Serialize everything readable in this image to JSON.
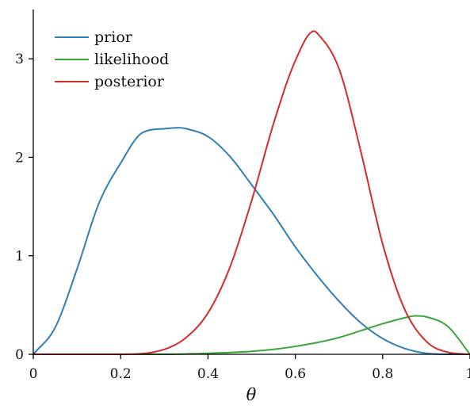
{
  "chart_data": {
    "type": "line",
    "title": "",
    "xlabel": "θ",
    "ylabel": "",
    "xlim": [
      0,
      1
    ],
    "ylim": [
      0,
      3.5
    ],
    "x_ticks": [
      0,
      0.2,
      0.4,
      0.6,
      0.8,
      1
    ],
    "x_tick_labels": [
      "0",
      "0.2",
      "0.4",
      "0.6",
      "0.8",
      "1"
    ],
    "y_ticks": [
      0,
      1,
      2,
      3
    ],
    "y_tick_labels": [
      "0",
      "1",
      "2",
      "3"
    ],
    "grid": false,
    "legend_position": "top-left",
    "series": [
      {
        "name": "prior",
        "color": "#2f7fb5",
        "x": [
          0,
          0.05,
          0.1,
          0.15,
          0.2,
          0.25,
          0.3,
          0.333,
          0.35,
          0.4,
          0.45,
          0.5,
          0.55,
          0.6,
          0.65,
          0.7,
          0.75,
          0.8,
          0.85,
          0.9,
          0.95,
          1
        ],
        "y": [
          0,
          0.271,
          0.864,
          1.53,
          1.94,
          2.25,
          2.29,
          2.3,
          2.29,
          2.21,
          2.01,
          1.72,
          1.42,
          1.09,
          0.8,
          0.54,
          0.32,
          0.16,
          0.06,
          0.01,
          0.0,
          0
        ]
      },
      {
        "name": "likelihood",
        "color": "#3aa63a",
        "x": [
          0,
          0.2,
          0.3,
          0.4,
          0.5,
          0.55,
          0.6,
          0.65,
          0.7,
          0.75,
          0.8,
          0.85,
          0.875,
          0.9,
          0.95,
          1
        ],
        "y": [
          0,
          0.0,
          0.0,
          0.01,
          0.03,
          0.05,
          0.08,
          0.12,
          0.17,
          0.24,
          0.31,
          0.37,
          0.39,
          0.38,
          0.28,
          0
        ]
      },
      {
        "name": "posterior",
        "color": "#d62a2a",
        "x": [
          0,
          0.2,
          0.3,
          0.35,
          0.4,
          0.45,
          0.5,
          0.55,
          0.6,
          0.643,
          0.65,
          0.7,
          0.75,
          0.8,
          0.85,
          0.9,
          0.95,
          1
        ],
        "y": [
          0,
          0.0,
          0.05,
          0.17,
          0.42,
          0.88,
          1.56,
          2.34,
          2.98,
          3.28,
          3.26,
          2.9,
          2.06,
          1.12,
          0.46,
          0.13,
          0.02,
          0
        ]
      }
    ]
  }
}
